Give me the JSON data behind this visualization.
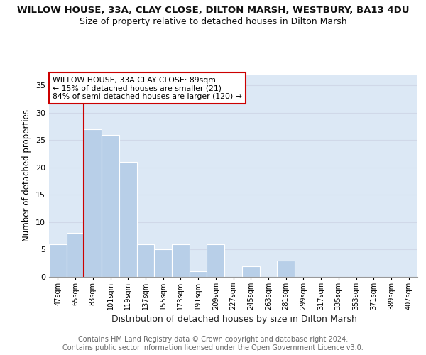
{
  "title": "WILLOW HOUSE, 33A, CLAY CLOSE, DILTON MARSH, WESTBURY, BA13 4DU",
  "subtitle": "Size of property relative to detached houses in Dilton Marsh",
  "xlabel": "Distribution of detached houses by size in Dilton Marsh",
  "ylabel": "Number of detached properties",
  "categories": [
    "47sqm",
    "65sqm",
    "83sqm",
    "101sqm",
    "119sqm",
    "137sqm",
    "155sqm",
    "173sqm",
    "191sqm",
    "209sqm",
    "227sqm",
    "245sqm",
    "263sqm",
    "281sqm",
    "299sqm",
    "317sqm",
    "335sqm",
    "353sqm",
    "371sqm",
    "389sqm",
    "407sqm"
  ],
  "values": [
    6,
    8,
    27,
    26,
    21,
    6,
    5,
    6,
    1,
    6,
    0,
    2,
    0,
    3,
    0,
    0,
    0,
    0,
    0,
    0,
    0
  ],
  "bar_color": "#b8cfe8",
  "annotation_box_text": "WILLOW HOUSE, 33A CLAY CLOSE: 89sqm\n← 15% of detached houses are smaller (21)\n84% of semi-detached houses are larger (120) →",
  "annotation_box_color": "#cc0000",
  "annotation_box_bg": "#ffffff",
  "vline_color": "#cc0000",
  "vline_x_index": 2,
  "ylim": [
    0,
    37
  ],
  "yticks": [
    0,
    5,
    10,
    15,
    20,
    25,
    30,
    35
  ],
  "grid_color": "#d0d8e8",
  "bg_color": "#dce8f5",
  "footer_text": "Contains HM Land Registry data © Crown copyright and database right 2024.\nContains public sector information licensed under the Open Government Licence v3.0.",
  "title_fontsize": 9.5,
  "subtitle_fontsize": 9,
  "xlabel_fontsize": 9,
  "ylabel_fontsize": 8.5,
  "footer_fontsize": 7
}
